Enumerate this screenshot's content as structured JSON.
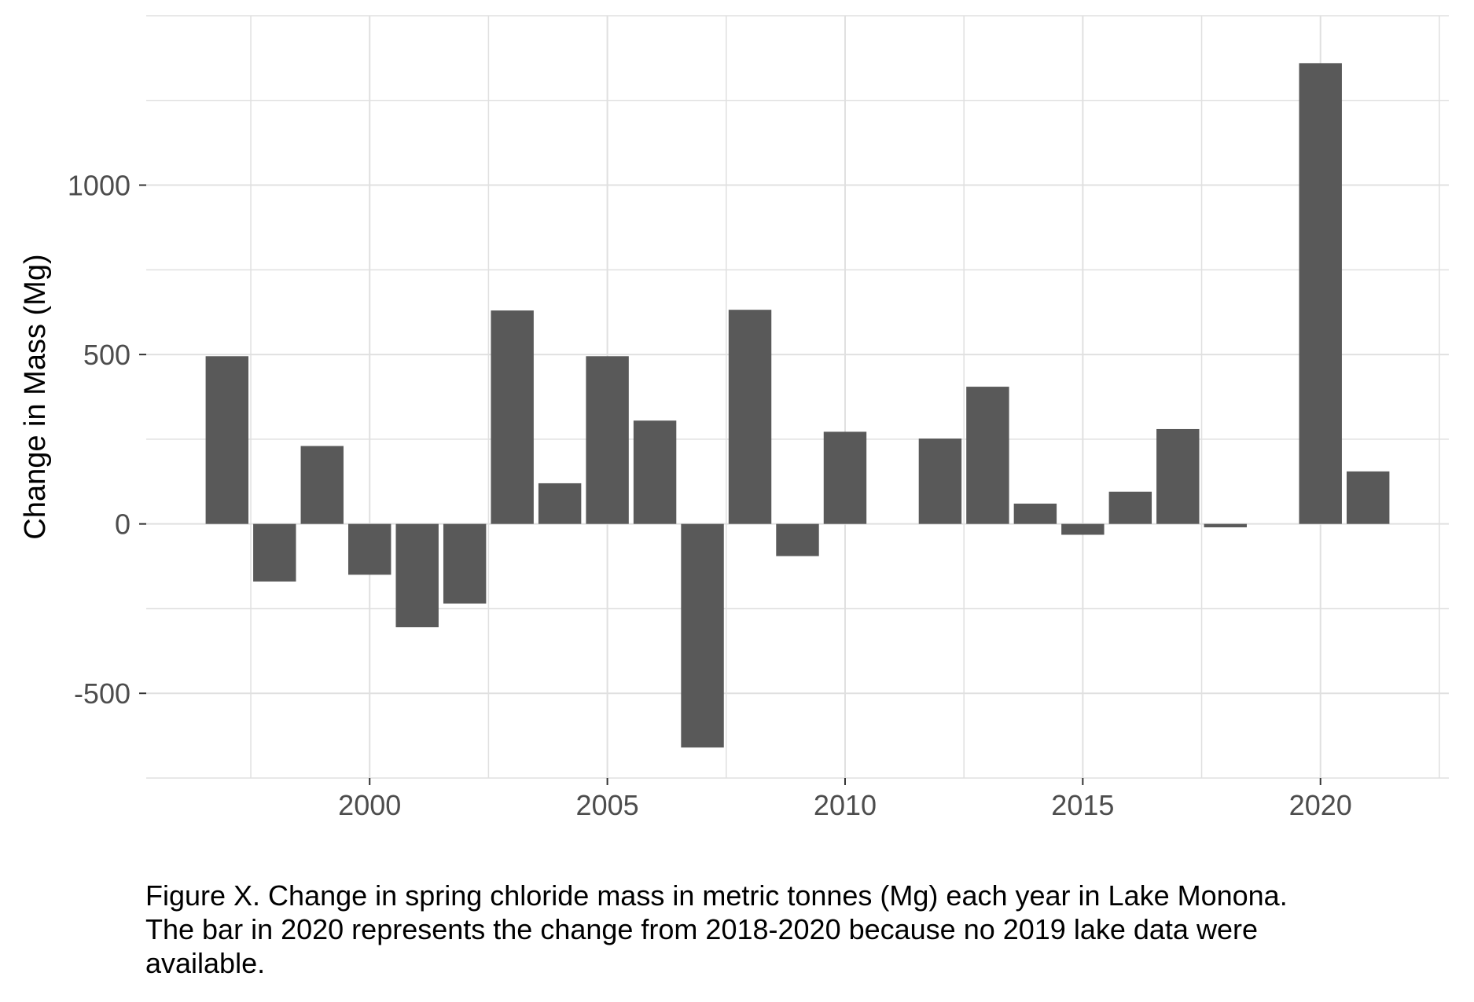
{
  "chart_data": {
    "type": "bar",
    "title": "",
    "xlabel": "",
    "ylabel": "Change in Mass (Mg)",
    "x": [
      1997,
      1998,
      1999,
      2000,
      2001,
      2002,
      2003,
      2004,
      2005,
      2006,
      2007,
      2008,
      2009,
      2010,
      2012,
      2013,
      2014,
      2015,
      2016,
      2017,
      2018,
      2020,
      2021
    ],
    "values": [
      495,
      -170,
      230,
      -150,
      -305,
      -235,
      630,
      120,
      495,
      305,
      -660,
      632,
      -95,
      272,
      252,
      405,
      60,
      -32,
      95,
      280,
      -10,
      1360,
      155
    ],
    "xlim": [
      1995.3,
      2022.7
    ],
    "ylim": [
      -750,
      1500
    ],
    "x_ticks": [
      2000,
      2005,
      2010,
      2015,
      2020
    ],
    "y_ticks": [
      -500,
      0,
      500,
      1000
    ],
    "grid": true,
    "legend": "none",
    "bar_color": "#595959",
    "grid_color": "#e0e0e0"
  },
  "caption": {
    "lines": [
      "Figure X. Change in spring chloride mass in metric tonnes (Mg) each year in Lake Monona.",
      "The bar in 2020 represents the change from 2018-2020 because no 2019 lake data were",
      "available."
    ]
  }
}
